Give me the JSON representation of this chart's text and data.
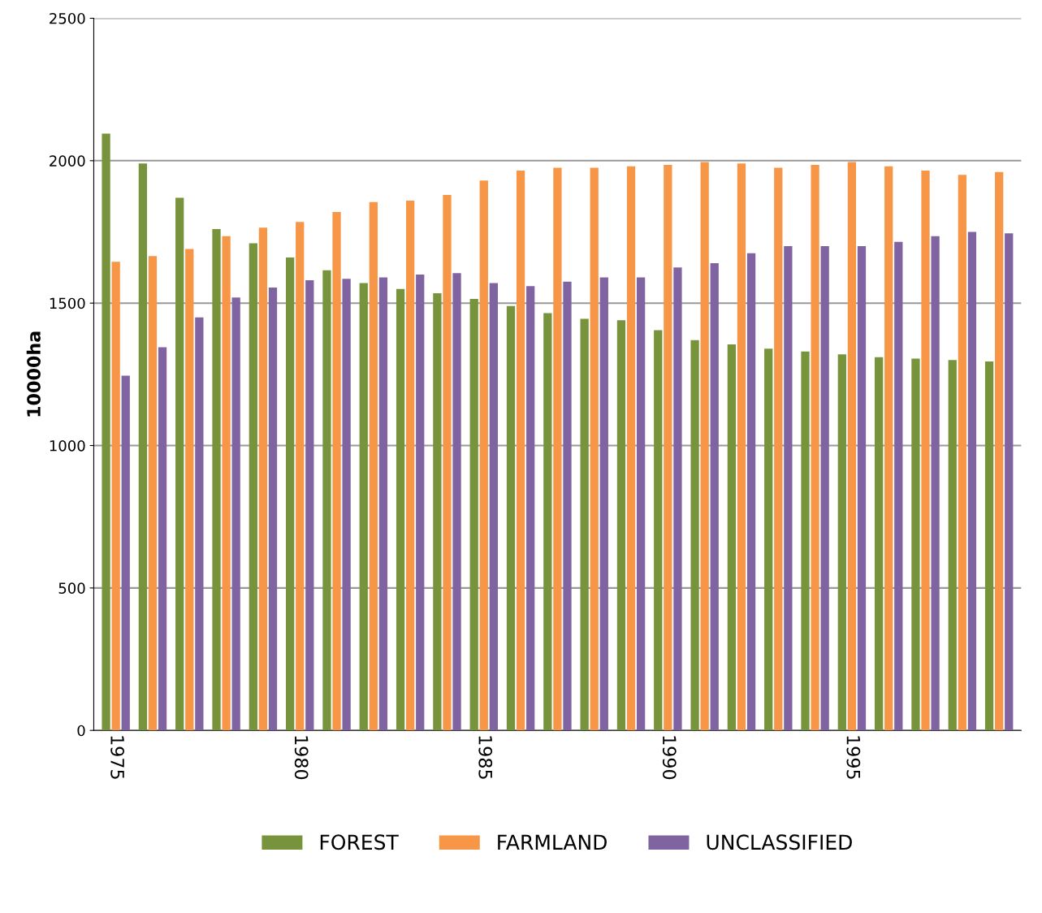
{
  "chart_data": {
    "type": "bar",
    "ylabel": "10000ha",
    "categories": [
      "1975",
      null,
      null,
      null,
      null,
      "1980",
      null,
      null,
      null,
      null,
      "1985",
      null,
      null,
      null,
      null,
      "1990",
      null,
      null,
      null,
      null,
      "1995",
      null,
      null,
      null,
      null
    ],
    "series": [
      {
        "name": "FOREST",
        "color": "#77933c",
        "values": [
          2095,
          1990,
          1870,
          1760,
          1710,
          1660,
          1615,
          1570,
          1550,
          1535,
          1515,
          1490,
          1465,
          1445,
          1440,
          1405,
          1370,
          1355,
          1340,
          1330,
          1320,
          1310,
          1305,
          1300,
          1295
        ]
      },
      {
        "name": "FARMLAND",
        "color": "#f79646",
        "values": [
          1645,
          1665,
          1690,
          1735,
          1765,
          1785,
          1820,
          1855,
          1860,
          1880,
          1930,
          1965,
          1975,
          1975,
          1980,
          1985,
          1995,
          1990,
          1975,
          1985,
          1995,
          1980,
          1965,
          1950,
          1960
        ]
      },
      {
        "name": "UNCLASSIFIED",
        "color": "#8064a2",
        "values": [
          1245,
          1345,
          1450,
          1520,
          1555,
          1580,
          1585,
          1590,
          1600,
          1605,
          1570,
          1560,
          1575,
          1590,
          1590,
          1625,
          1640,
          1675,
          1700,
          1700,
          1700,
          1715,
          1735,
          1750,
          1745
        ]
      }
    ],
    "ylim": [
      0,
      2500
    ],
    "yticks": [
      0,
      500,
      1000,
      1500,
      2000,
      2500
    ],
    "grid": "y",
    "legend": "bottom"
  }
}
